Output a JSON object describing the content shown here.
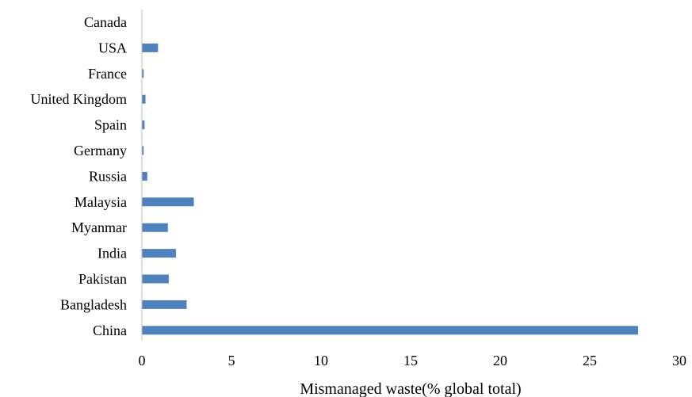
{
  "chart_data": {
    "type": "bar",
    "orientation": "horizontal",
    "categories": [
      "Canada",
      "USA",
      "France",
      "United Kingdom",
      "Spain",
      "Germany",
      "Russia",
      "Malaysia",
      "Myanmar",
      "India",
      "Pakistan",
      "Bangladesh",
      "China"
    ],
    "values": [
      0.0,
      0.9,
      0.1,
      0.2,
      0.15,
      0.1,
      0.3,
      2.9,
      1.45,
      1.9,
      1.5,
      2.5,
      27.7
    ],
    "xlabel": "Mismanaged waste(% global total)",
    "ylabel": "",
    "xlim": [
      0,
      30
    ],
    "xticks": [
      0,
      5,
      10,
      15,
      20,
      25,
      30
    ],
    "grid": false,
    "legend": "none",
    "bar_color": "#4f81bd",
    "axis_color": "#bfbfbf"
  }
}
